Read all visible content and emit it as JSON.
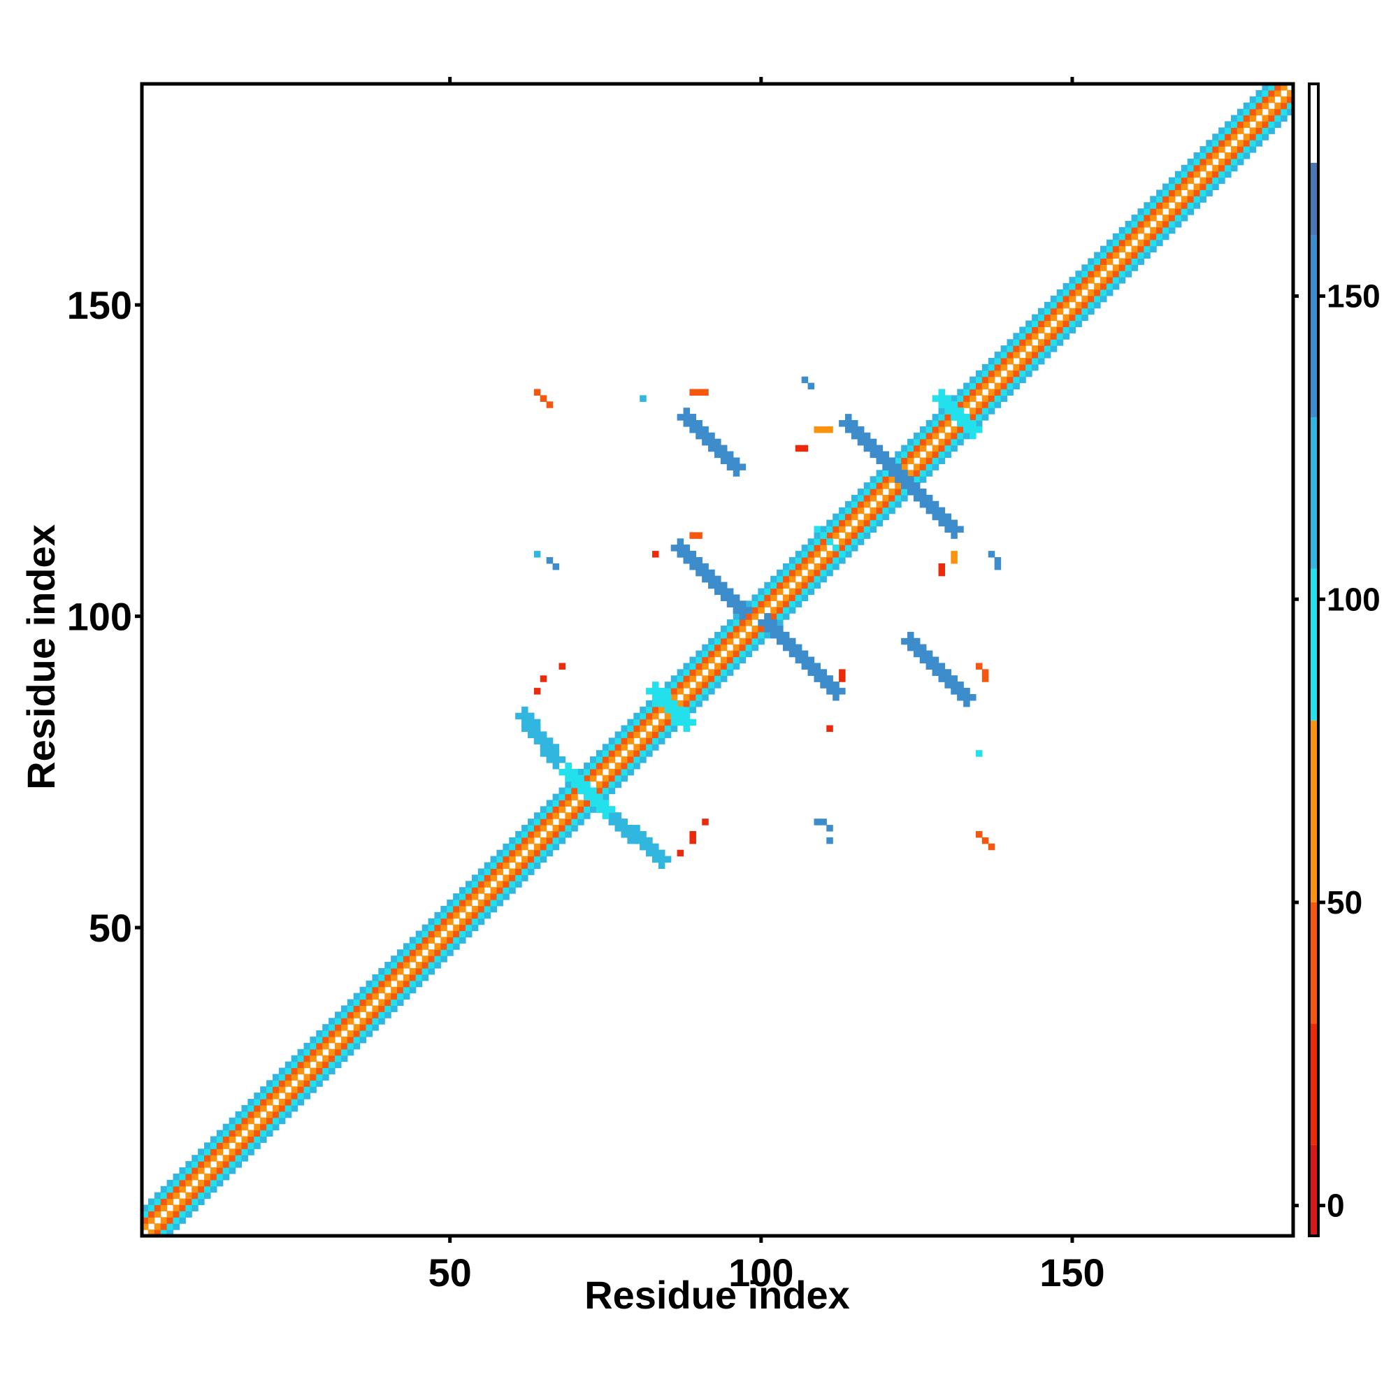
{
  "chart_data": {
    "type": "heatmap",
    "xlabel": "Residue index",
    "ylabel": "Residue index",
    "xlim": [
      1,
      185
    ],
    "ylim": [
      1,
      185
    ],
    "x_ticks": [
      50,
      100,
      150
    ],
    "y_ticks": [
      50,
      100,
      150
    ],
    "x_tick_labels": [
      "50",
      "100",
      "150"
    ],
    "y_tick_labels": [
      "50",
      "100",
      "150"
    ],
    "grid": false,
    "legend_placement": "right",
    "colorbar": {
      "range": [
        -5,
        185
      ],
      "ticks": [
        0,
        50,
        100,
        150
      ],
      "tick_labels": [
        "0",
        "50",
        "100",
        "150"
      ],
      "bands": [
        {
          "from": -5,
          "to": 10,
          "color": "#d7191c"
        },
        {
          "from": 10,
          "to": 30,
          "color": "#ea2a0a"
        },
        {
          "from": 30,
          "to": 50,
          "color": "#f5570e"
        },
        {
          "from": 50,
          "to": 80,
          "color": "#f9920f"
        },
        {
          "from": 80,
          "to": 105,
          "color": "#22e1ec"
        },
        {
          "from": 105,
          "to": 130,
          "color": "#31b6e0"
        },
        {
          "from": 130,
          "to": 160,
          "color": "#3d8ccc"
        },
        {
          "from": 160,
          "to": 172,
          "color": "#4a77b4"
        },
        {
          "from": 172,
          "to": 185,
          "color": "#ffffff"
        }
      ]
    },
    "diagonal_band": {
      "range": [
        1,
        185
      ],
      "offset_colors": [
        "#ffffff",
        "#f9920f",
        "#f5570e",
        "#22e1ec",
        "#31b6e0"
      ]
    },
    "contact_patches": [
      {
        "x": [
          87,
          97
        ],
        "y": [
          111,
          101
        ],
        "color": "#3d8ccc",
        "value": 140
      },
      {
        "x": [
          101,
          112
        ],
        "y": [
          99,
          88
        ],
        "color": "#3d8ccc",
        "value": 140
      },
      {
        "x": [
          88,
          96
        ],
        "y": [
          132,
          124
        ],
        "color": "#3d8ccc",
        "value": 140
      },
      {
        "x": [
          114,
          131
        ],
        "y": [
          131,
          114
        ],
        "color": "#3d8ccc",
        "value": 140
      },
      {
        "x": [
          124,
          133
        ],
        "y": [
          96,
          87
        ],
        "color": "#3d8ccc",
        "value": 140
      },
      {
        "x": [
          62,
          67
        ],
        "y": [
          84,
          77
        ],
        "color": "#31b6e0",
        "value": 118
      },
      {
        "x": [
          76,
          84
        ],
        "y": [
          68,
          61
        ],
        "color": "#31b6e0",
        "value": 118
      },
      {
        "x": [
          69,
          75
        ],
        "y": [
          75,
          69
        ],
        "color": "#22e1ec",
        "value": 95
      },
      {
        "x": [
          83,
          88
        ],
        "y": [
          88,
          83
        ],
        "color": "#22e1ec",
        "value": 95
      },
      {
        "x": [
          109,
          113
        ],
        "y": [
          114,
          110
        ],
        "color": "#22e1ec",
        "value": 95
      },
      {
        "x": [
          129,
          134
        ],
        "y": [
          135,
          130
        ],
        "color": "#22e1ec",
        "value": 95
      },
      {
        "x": [
          64,
          66
        ],
        "y": [
          136,
          134
        ],
        "color": "#f5570e",
        "value": 40
      },
      {
        "x": [
          89,
          91
        ],
        "y": [
          136,
          136
        ],
        "color": "#f5570e",
        "value": 40
      },
      {
        "x": [
          109,
          111
        ],
        "y": [
          130,
          130
        ],
        "color": "#f9920f",
        "value": 60
      },
      {
        "x": [
          106,
          107
        ],
        "y": [
          127,
          127
        ],
        "color": "#ea2a0a",
        "value": 20
      },
      {
        "x": [
          107,
          108
        ],
        "y": [
          138,
          137
        ],
        "color": "#3d8ccc",
        "value": 140
      },
      {
        "x": [
          81,
          81
        ],
        "y": [
          135,
          135
        ],
        "color": "#31b6e0",
        "value": 118
      },
      {
        "x": [
          89,
          90
        ],
        "y": [
          113,
          113
        ],
        "color": "#f5570e",
        "value": 40
      },
      {
        "x": [
          83,
          83
        ],
        "y": [
          110,
          110
        ],
        "color": "#ea2a0a",
        "value": 20
      },
      {
        "x": [
          64,
          64
        ],
        "y": [
          110,
          110
        ],
        "color": "#31b6e0",
        "value": 118
      },
      {
        "x": [
          66,
          67
        ],
        "y": [
          109,
          108
        ],
        "color": "#3d8ccc",
        "value": 140
      },
      {
        "x": [
          131,
          131
        ],
        "y": [
          110,
          109
        ],
        "color": "#f9920f",
        "value": 60
      },
      {
        "x": [
          129,
          129
        ],
        "y": [
          108,
          107
        ],
        "color": "#ea2a0a",
        "value": 20
      },
      {
        "x": [
          137,
          138
        ],
        "y": [
          110,
          108
        ],
        "color": "#3d8ccc",
        "value": 140
      },
      {
        "x": [
          113,
          113
        ],
        "y": [
          91,
          90
        ],
        "color": "#ea2a0a",
        "value": 20
      },
      {
        "x": [
          111,
          111
        ],
        "y": [
          82,
          82
        ],
        "color": "#ea2a0a",
        "value": 20
      },
      {
        "x": [
          135,
          136
        ],
        "y": [
          92,
          90
        ],
        "color": "#f5570e",
        "value": 40
      },
      {
        "x": [
          135,
          135
        ],
        "y": [
          78,
          78
        ],
        "color": "#22e1ec",
        "value": 95
      },
      {
        "x": [
          64,
          64
        ],
        "y": [
          88,
          88
        ],
        "color": "#ea2a0a",
        "value": 20
      },
      {
        "x": [
          68,
          68
        ],
        "y": [
          92,
          92
        ],
        "color": "#ea2a0a",
        "value": 20
      },
      {
        "x": [
          65,
          65
        ],
        "y": [
          90,
          90
        ],
        "color": "#ea2a0a",
        "value": 20
      },
      {
        "x": [
          109,
          111
        ],
        "y": [
          67,
          66
        ],
        "color": "#3d8ccc",
        "value": 140
      },
      {
        "x": [
          111,
          111
        ],
        "y": [
          64,
          64
        ],
        "color": "#3d8ccc",
        "value": 140
      },
      {
        "x": [
          135,
          137
        ],
        "y": [
          65,
          63
        ],
        "color": "#f5570e",
        "value": 40
      },
      {
        "x": [
          91,
          91
        ],
        "y": [
          67,
          67
        ],
        "color": "#ea2a0a",
        "value": 20
      },
      {
        "x": [
          89,
          89
        ],
        "y": [
          65,
          64
        ],
        "color": "#ea2a0a",
        "value": 20
      },
      {
        "x": [
          87,
          87
        ],
        "y": [
          62,
          62
        ],
        "color": "#ea2a0a",
        "value": 20
      }
    ]
  }
}
